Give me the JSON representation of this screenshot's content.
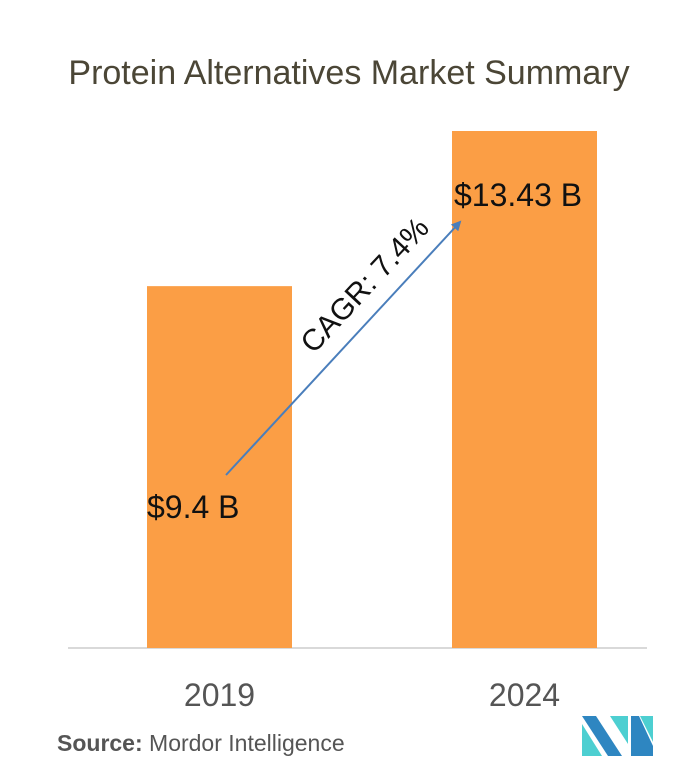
{
  "chart_data": {
    "type": "bar",
    "title": "Protein Alternatives Market Summary",
    "categories": [
      "2019",
      "2024"
    ],
    "values": [
      9.4,
      13.43
    ],
    "value_labels": [
      "$9.4 B",
      "$13.43 B"
    ],
    "unit": "USD billion",
    "ylim": [
      0,
      13.43
    ],
    "grid": false,
    "annotation": "CAGR: 7.4%",
    "bar_color": "#fb9e45",
    "arrow_color": "#4a7ebb"
  },
  "source": {
    "label": "Source:",
    "text": "Mordor Intelligence"
  },
  "logo": {
    "colors": [
      "#2e86c1",
      "#4dcfd1"
    ]
  }
}
